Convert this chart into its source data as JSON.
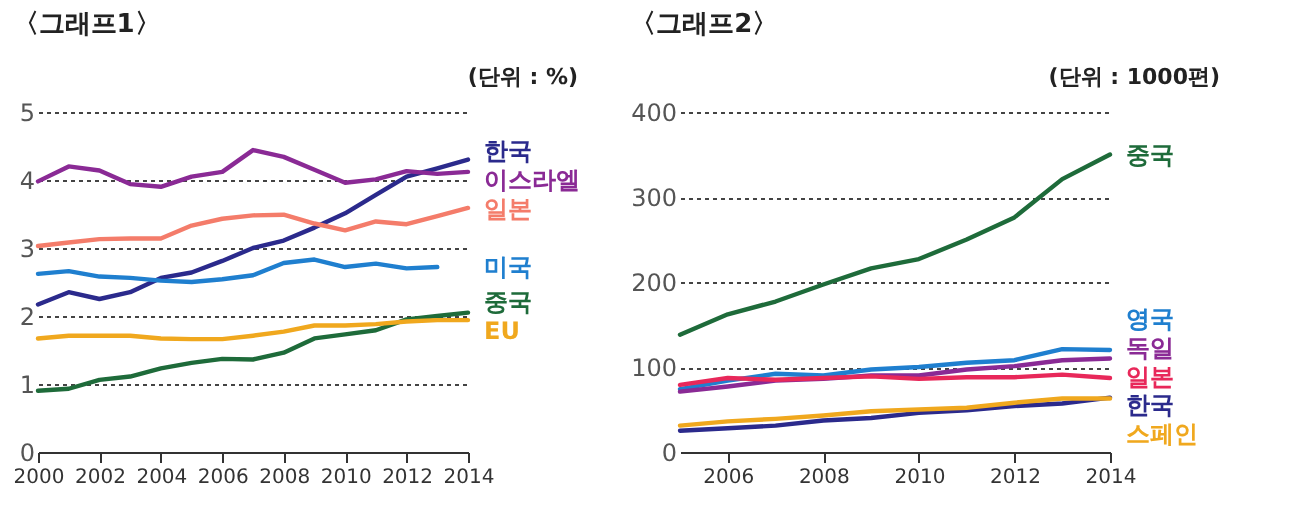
{
  "chart_data": [
    {
      "type": "line",
      "title": "〈그래프1〉",
      "annotations": [
        "(단위 : %)"
      ],
      "x": [
        2000,
        2001,
        2002,
        2003,
        2004,
        2005,
        2006,
        2007,
        2008,
        2009,
        2010,
        2011,
        2012,
        2013,
        2014
      ],
      "xlim": [
        2000,
        2014
      ],
      "xticks": [
        2000,
        2002,
        2004,
        2006,
        2008,
        2010,
        2012,
        2014
      ],
      "ylim": [
        0,
        5
      ],
      "yticks": [
        0,
        1,
        2,
        3,
        4,
        5
      ],
      "grid": "y",
      "legend": false,
      "marker": "none",
      "line_style": "solid",
      "series": [
        {
          "name": "한국",
          "color": "#2b2a8c",
          "values": [
            2.17,
            2.35,
            2.25,
            2.35,
            2.56,
            2.64,
            2.81,
            3.0,
            3.11,
            3.3,
            3.51,
            3.78,
            4.05,
            4.17,
            4.3
          ]
        },
        {
          "name": "이스라엘",
          "color": "#8a2a95",
          "values": [
            3.98,
            4.2,
            4.14,
            3.94,
            3.9,
            4.05,
            4.12,
            4.44,
            4.34,
            4.15,
            3.96,
            4.01,
            4.13,
            4.09,
            4.12
          ]
        },
        {
          "name": "일본",
          "color": "#f47c6a",
          "values": [
            3.03,
            3.08,
            3.13,
            3.14,
            3.14,
            3.33,
            3.43,
            3.48,
            3.49,
            3.36,
            3.26,
            3.39,
            3.35,
            3.47,
            3.59
          ]
        },
        {
          "name": "미국",
          "color": "#1f7fcf",
          "values": [
            2.62,
            2.66,
            2.58,
            2.56,
            2.52,
            2.5,
            2.54,
            2.6,
            2.78,
            2.83,
            2.72,
            2.77,
            2.7,
            2.72,
            null
          ]
        },
        {
          "name": "중국",
          "color": "#1e6b3a",
          "values": [
            0.9,
            0.93,
            1.06,
            1.11,
            1.23,
            1.31,
            1.37,
            1.36,
            1.46,
            1.67,
            1.73,
            1.79,
            1.95,
            2.0,
            2.05
          ]
        },
        {
          "name": "EU",
          "color": "#f0a81e",
          "values": [
            1.67,
            1.71,
            1.71,
            1.71,
            1.67,
            1.66,
            1.66,
            1.71,
            1.77,
            1.86,
            1.86,
            1.88,
            1.92,
            1.94,
            1.94
          ]
        }
      ]
    },
    {
      "type": "line",
      "title": "〈그래프2〉",
      "annotations": [
        "(단위 : 1000편)"
      ],
      "x": [
        2005,
        2006,
        2007,
        2008,
        2009,
        2010,
        2011,
        2012,
        2013,
        2014
      ],
      "xlim": [
        2005,
        2014
      ],
      "xticks": [
        2006,
        2008,
        2010,
        2012,
        2014
      ],
      "ylim": [
        0,
        400
      ],
      "yticks": [
        0,
        100,
        200,
        300,
        400
      ],
      "grid": "y",
      "legend": false,
      "marker": "none",
      "line_style": "solid",
      "series": [
        {
          "name": "중국",
          "color": "#1e6b3a",
          "values": [
            138,
            162,
            177,
            197,
            216,
            227,
            250,
            276,
            321,
            350
          ]
        },
        {
          "name": "영국",
          "color": "#1f7fcf",
          "values": [
            74,
            84,
            92,
            90,
            97,
            100,
            105,
            108,
            121,
            120
          ]
        },
        {
          "name": "독일",
          "color": "#8a2a95",
          "values": [
            71,
            77,
            84,
            86,
            90,
            90,
            97,
            101,
            108,
            110
          ]
        },
        {
          "name": "일본",
          "color": "#e8285a",
          "values": [
            79,
            87,
            85,
            87,
            89,
            86,
            88,
            88,
            91,
            87
          ]
        },
        {
          "name": "한국",
          "color": "#2b2a8c",
          "values": [
            25,
            28,
            31,
            37,
            40,
            46,
            49,
            54,
            57,
            64
          ]
        },
        {
          "name": "스페인",
          "color": "#f0a81e",
          "values": [
            31,
            36,
            39,
            43,
            48,
            50,
            52,
            58,
            63,
            63
          ]
        }
      ]
    }
  ]
}
